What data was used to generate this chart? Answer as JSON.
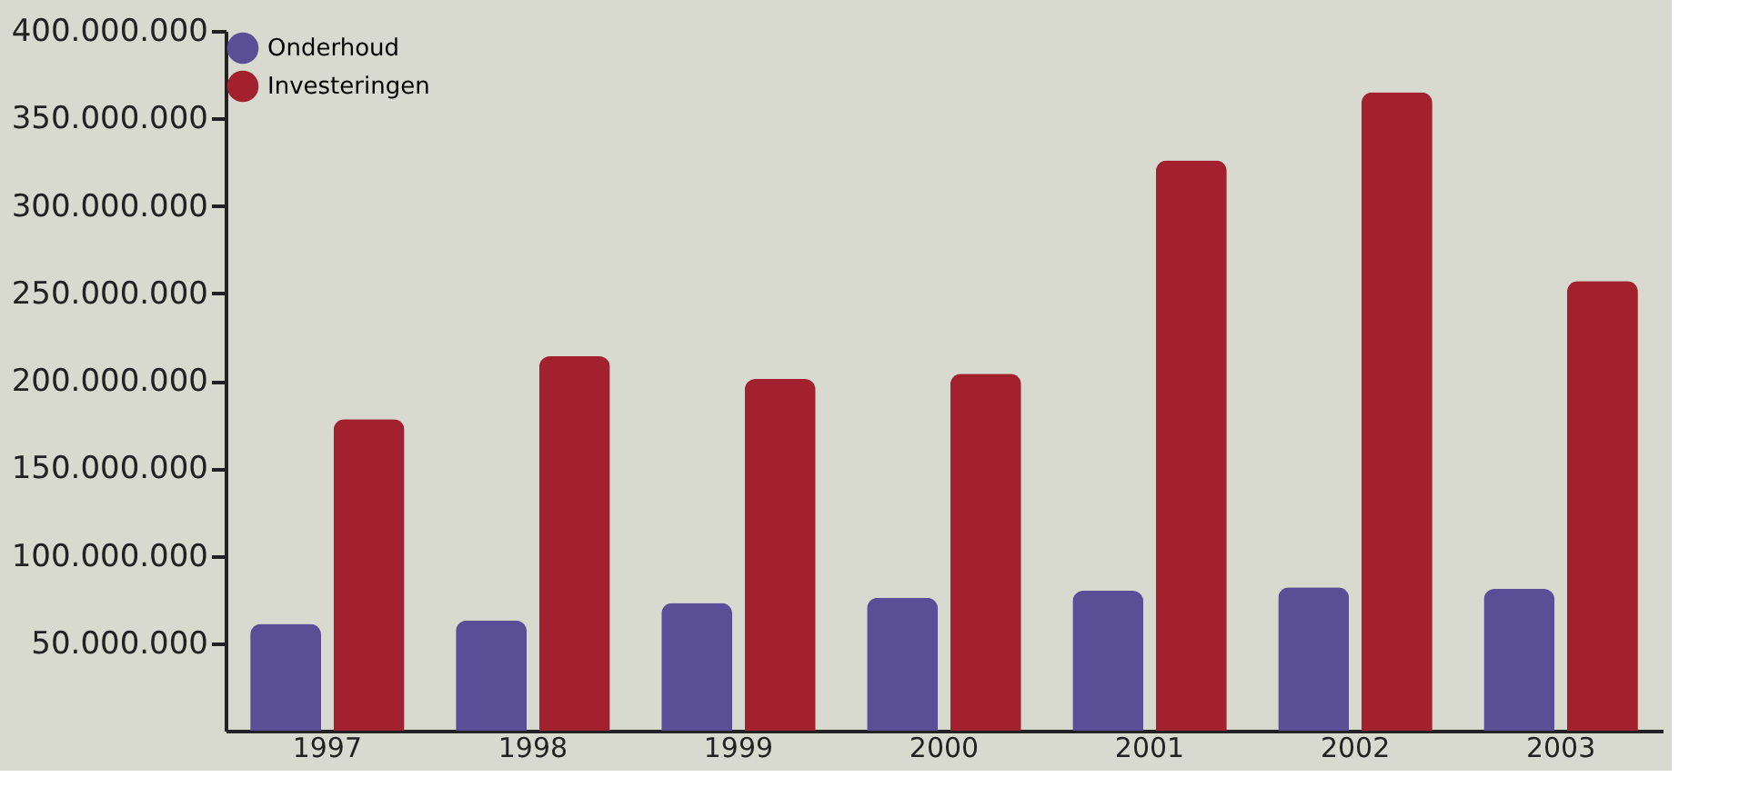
{
  "chart_data": {
    "type": "bar",
    "categories": [
      "1997",
      "1998",
      "1999",
      "2000",
      "2001",
      "2002",
      "2003"
    ],
    "series": [
      {
        "name": "Onderhoud",
        "color": "#5a4f96",
        "values": [
          61000000,
          63000000,
          73000000,
          76000000,
          80000000,
          82000000,
          81000000
        ]
      },
      {
        "name": "Investeringen",
        "color": "#a3202e",
        "values": [
          178000000,
          214000000,
          201000000,
          204000000,
          326000000,
          365000000,
          257000000
        ]
      }
    ],
    "ylim": [
      0,
      400000000
    ],
    "yticks": [
      {
        "value": 50000000,
        "label": "50.000.000"
      },
      {
        "value": 100000000,
        "label": "100.000.000"
      },
      {
        "value": 150000000,
        "label": "150.000.000"
      },
      {
        "value": 200000000,
        "label": "200.000.000"
      },
      {
        "value": 250000000,
        "label": "250.000.000"
      },
      {
        "value": 300000000,
        "label": "300.000.000"
      },
      {
        "value": 350000000,
        "label": "350.000.000"
      },
      {
        "value": 400000000,
        "label": "400.000.000"
      }
    ],
    "grid": false,
    "legend": "top"
  }
}
